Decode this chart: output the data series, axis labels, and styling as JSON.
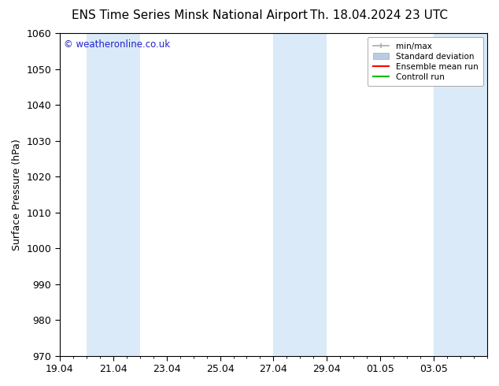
{
  "title_left": "ENS Time Series Minsk National Airport",
  "title_right": "Th. 18.04.2024 23 UTC",
  "ylabel": "Surface Pressure (hPa)",
  "watermark": "© weatheronline.co.uk",
  "watermark_color": "#2222cc",
  "ylim": [
    970,
    1060
  ],
  "ytick_interval": 10,
  "xtick_labels": [
    "19.04",
    "21.04",
    "23.04",
    "25.04",
    "27.04",
    "29.04",
    "01.05",
    "03.05"
  ],
  "xtick_positions": [
    0,
    2,
    4,
    6,
    8,
    10,
    12,
    14
  ],
  "shade_bands": [
    {
      "x_start": 1.0,
      "x_end": 3.0
    },
    {
      "x_start": 8.0,
      "x_end": 10.0
    },
    {
      "x_start": 14.0,
      "x_end": 16.0
    }
  ],
  "shade_color": "#daeaf8",
  "background_color": "#ffffff",
  "legend_labels": [
    "min/max",
    "Standard deviation",
    "Ensemble mean run",
    "Controll run"
  ],
  "legend_colors": [
    "#aaaaaa",
    "#b8cce4",
    "#ff0000",
    "#00bb00"
  ],
  "xlim": [
    0,
    16
  ],
  "title_fontsize": 11,
  "label_fontsize": 9,
  "tick_fontsize": 9
}
